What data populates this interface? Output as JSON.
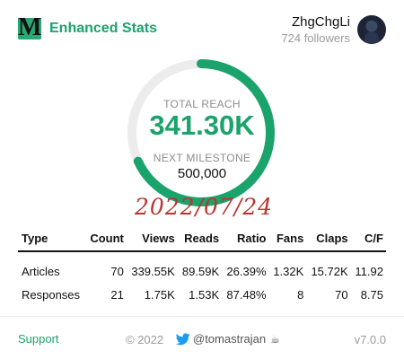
{
  "header": {
    "logo_letter": "M",
    "app_title": "Enhanced Stats",
    "username": "ZhgChgLi",
    "followers": "724 followers"
  },
  "reach": {
    "label": "TOTAL REACH",
    "value": "341.30K",
    "milestone_label": "NEXT MILESTONE",
    "milestone_value": "500,000",
    "progress_fraction": 0.6826
  },
  "date_stamp": "2022/07/24",
  "table": {
    "columns": [
      "Type",
      "Count",
      "Views",
      "Reads",
      "Ratio",
      "Fans",
      "Claps",
      "C/F"
    ],
    "rows": [
      [
        "Articles",
        "70",
        "339.55K",
        "89.59K",
        "26.39%",
        "1.32K",
        "15.72K",
        "11.92"
      ],
      [
        "Responses",
        "21",
        "1.75K",
        "1.53K",
        "87.48%",
        "8",
        "70",
        "8.75"
      ]
    ]
  },
  "footer": {
    "support": "Support",
    "copyright": "© 2022",
    "twitter": "@tomastrajan",
    "coffee_icon": "☕",
    "version": "v7.0.0"
  },
  "colors": {
    "accent": "#1aa36b",
    "gauge_track": "#ececec",
    "date_stamp": "#b8362f"
  },
  "icons": {
    "logo": "medium-logo-icon",
    "avatar": "user-avatar",
    "twitter": "twitter-bird-icon",
    "coffee": "coffee-cup-icon"
  }
}
